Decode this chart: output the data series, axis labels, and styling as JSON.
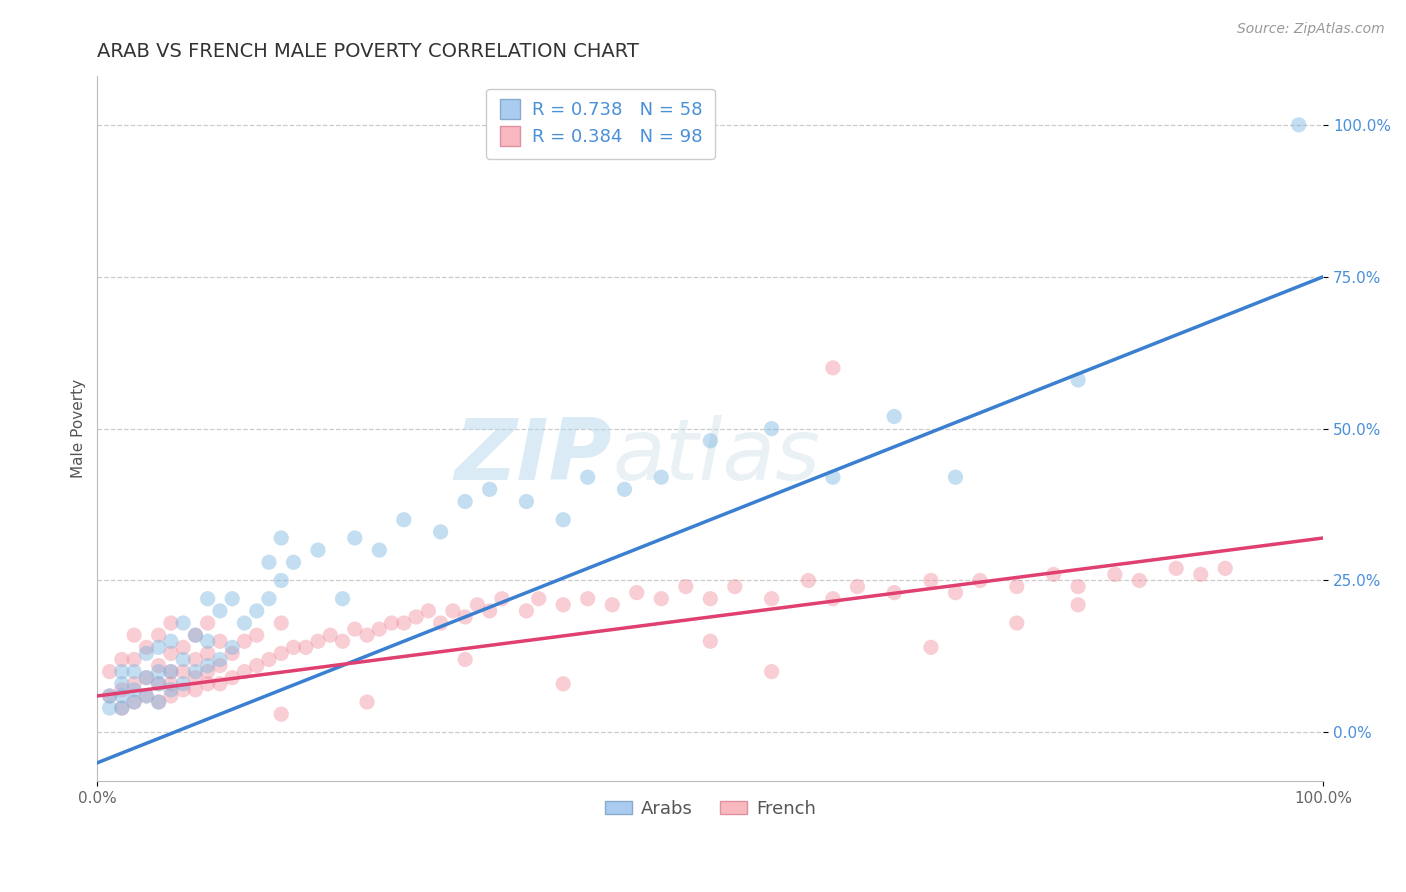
{
  "title": "ARAB VS FRENCH MALE POVERTY CORRELATION CHART",
  "source": "Source: ZipAtlas.com",
  "ylabel": "Male Poverty",
  "watermark": "ZIPatlas",
  "xlim": [
    0.0,
    1.0
  ],
  "ylim": [
    -0.08,
    1.08
  ],
  "x_ticks": [
    0.0,
    1.0
  ],
  "x_tick_labels": [
    "0.0%",
    "100.0%"
  ],
  "y_ticks": [
    0.0,
    0.25,
    0.5,
    0.75,
    1.0
  ],
  "grid_color": "#cccccc",
  "background_color": "#ffffff",
  "arab_color": "#7ab4e0",
  "french_color": "#f090a0",
  "line_arab_color": "#3a7fd0",
  "line_french_color": "#e04070",
  "arab_R": 0.738,
  "arab_N": 58,
  "french_R": 0.384,
  "french_N": 98,
  "legend_arab_label": "Arabs",
  "legend_french_label": "French",
  "arab_line_x0": 0.0,
  "arab_line_y0": -0.05,
  "arab_line_x1": 1.0,
  "arab_line_y1": 0.75,
  "french_line_x0": 0.0,
  "french_line_y0": 0.06,
  "french_line_x1": 1.0,
  "french_line_y1": 0.32,
  "arab_scatter_x": [
    0.01,
    0.01,
    0.02,
    0.02,
    0.02,
    0.02,
    0.03,
    0.03,
    0.03,
    0.04,
    0.04,
    0.04,
    0.05,
    0.05,
    0.05,
    0.05,
    0.06,
    0.06,
    0.06,
    0.07,
    0.07,
    0.07,
    0.08,
    0.08,
    0.09,
    0.09,
    0.09,
    0.1,
    0.1,
    0.11,
    0.11,
    0.12,
    0.13,
    0.14,
    0.14,
    0.15,
    0.15,
    0.16,
    0.18,
    0.2,
    0.21,
    0.23,
    0.25,
    0.28,
    0.3,
    0.32,
    0.35,
    0.38,
    0.4,
    0.43,
    0.46,
    0.5,
    0.55,
    0.6,
    0.65,
    0.7,
    0.8,
    0.98
  ],
  "arab_scatter_y": [
    0.04,
    0.06,
    0.04,
    0.06,
    0.08,
    0.1,
    0.05,
    0.07,
    0.1,
    0.06,
    0.09,
    0.13,
    0.05,
    0.08,
    0.1,
    0.14,
    0.07,
    0.1,
    0.15,
    0.08,
    0.12,
    0.18,
    0.1,
    0.16,
    0.11,
    0.15,
    0.22,
    0.12,
    0.2,
    0.14,
    0.22,
    0.18,
    0.2,
    0.22,
    0.28,
    0.25,
    0.32,
    0.28,
    0.3,
    0.22,
    0.32,
    0.3,
    0.35,
    0.33,
    0.38,
    0.4,
    0.38,
    0.35,
    0.42,
    0.4,
    0.42,
    0.48,
    0.5,
    0.42,
    0.52,
    0.42,
    0.58,
    1.0
  ],
  "french_scatter_x": [
    0.01,
    0.01,
    0.02,
    0.02,
    0.02,
    0.03,
    0.03,
    0.03,
    0.03,
    0.04,
    0.04,
    0.04,
    0.05,
    0.05,
    0.05,
    0.05,
    0.06,
    0.06,
    0.06,
    0.06,
    0.06,
    0.07,
    0.07,
    0.07,
    0.08,
    0.08,
    0.08,
    0.08,
    0.09,
    0.09,
    0.09,
    0.09,
    0.1,
    0.1,
    0.1,
    0.11,
    0.11,
    0.12,
    0.12,
    0.13,
    0.13,
    0.14,
    0.15,
    0.15,
    0.16,
    0.17,
    0.18,
    0.19,
    0.2,
    0.21,
    0.22,
    0.23,
    0.24,
    0.25,
    0.26,
    0.27,
    0.28,
    0.29,
    0.3,
    0.31,
    0.32,
    0.33,
    0.35,
    0.36,
    0.38,
    0.4,
    0.42,
    0.44,
    0.46,
    0.48,
    0.5,
    0.52,
    0.55,
    0.58,
    0.6,
    0.62,
    0.65,
    0.68,
    0.7,
    0.72,
    0.75,
    0.78,
    0.8,
    0.83,
    0.85,
    0.88,
    0.9,
    0.92,
    0.6,
    0.68,
    0.75,
    0.8,
    0.5,
    0.55,
    0.3,
    0.38,
    0.22,
    0.15
  ],
  "french_scatter_y": [
    0.06,
    0.1,
    0.04,
    0.07,
    0.12,
    0.05,
    0.08,
    0.12,
    0.16,
    0.06,
    0.09,
    0.14,
    0.05,
    0.08,
    0.11,
    0.16,
    0.06,
    0.08,
    0.1,
    0.13,
    0.18,
    0.07,
    0.1,
    0.14,
    0.07,
    0.09,
    0.12,
    0.16,
    0.08,
    0.1,
    0.13,
    0.18,
    0.08,
    0.11,
    0.15,
    0.09,
    0.13,
    0.1,
    0.15,
    0.11,
    0.16,
    0.12,
    0.13,
    0.18,
    0.14,
    0.14,
    0.15,
    0.16,
    0.15,
    0.17,
    0.16,
    0.17,
    0.18,
    0.18,
    0.19,
    0.2,
    0.18,
    0.2,
    0.19,
    0.21,
    0.2,
    0.22,
    0.2,
    0.22,
    0.21,
    0.22,
    0.21,
    0.23,
    0.22,
    0.24,
    0.22,
    0.24,
    0.22,
    0.25,
    0.22,
    0.24,
    0.23,
    0.25,
    0.23,
    0.25,
    0.24,
    0.26,
    0.24,
    0.26,
    0.25,
    0.27,
    0.26,
    0.27,
    0.6,
    0.14,
    0.18,
    0.21,
    0.15,
    0.1,
    0.12,
    0.08,
    0.05,
    0.03
  ],
  "title_fontsize": 14,
  "axis_label_fontsize": 11,
  "tick_fontsize": 11,
  "source_fontsize": 10,
  "legend_fontsize": 13,
  "marker_size": 120,
  "marker_alpha": 0.45,
  "line_width": 2.5
}
